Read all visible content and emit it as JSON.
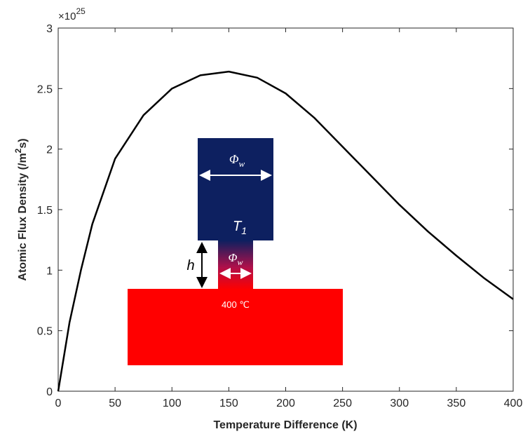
{
  "chart_data": {
    "type": "line",
    "xlabel": "Temperature Difference (K)",
    "ylabel": [
      "Atomic Flux Density (/m",
      "2",
      "s)"
    ],
    "multiplier": [
      "×10",
      "25"
    ],
    "x": [
      0,
      10,
      20,
      30,
      50,
      75,
      100,
      125,
      150,
      175,
      200,
      225,
      250,
      275,
      300,
      325,
      350,
      375,
      400
    ],
    "series": [
      {
        "color": "#000000",
        "values": [
          0,
          0.57,
          1.0,
          1.38,
          1.92,
          2.28,
          2.5,
          2.61,
          2.64,
          2.59,
          2.46,
          2.26,
          2.02,
          1.78,
          1.54,
          1.32,
          1.12,
          0.93,
          0.76
        ]
      }
    ],
    "xlim": [
      0,
      400
    ],
    "xticks": [
      0,
      50,
      100,
      150,
      200,
      250,
      300,
      350,
      400
    ],
    "ylim": [
      0,
      3
    ],
    "yticks": [
      0,
      0.5,
      1,
      1.5,
      2,
      2.5,
      3
    ]
  },
  "inset": {
    "top_width": [
      "Φ",
      "w"
    ],
    "top_temp": [
      "T",
      "1"
    ],
    "neck_width": [
      "Φ",
      "w"
    ],
    "gap": "h",
    "bottom_temp": "400 ℃"
  }
}
